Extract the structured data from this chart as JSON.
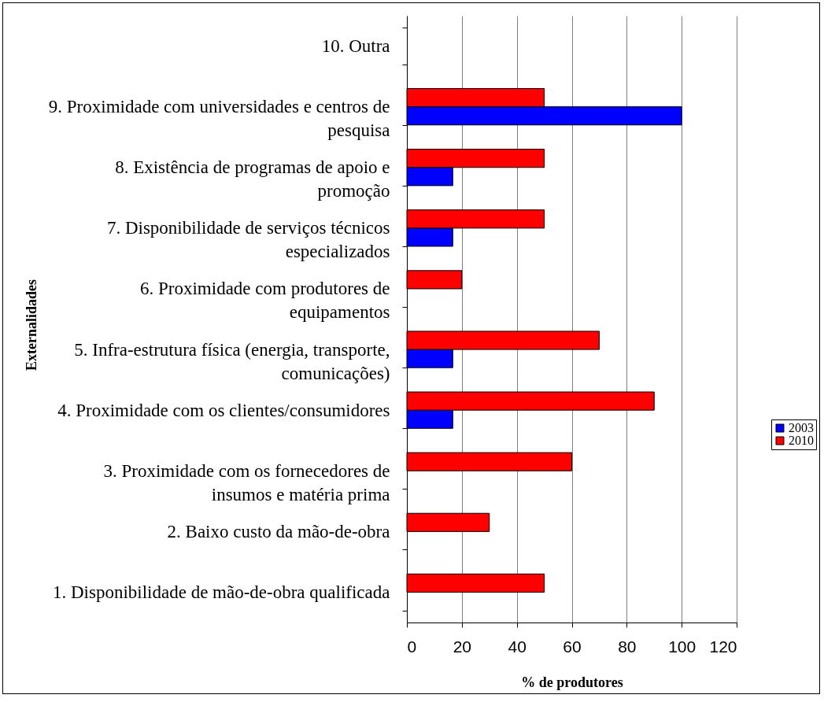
{
  "chart_data": {
    "type": "bar",
    "orientation": "horizontal",
    "xlabel": "% de produtores",
    "ylabel": "Externalidades",
    "categories": [
      "10. Outra",
      "9. Proximidade com universidades e centros de pesquisa",
      "8. Existência de programas de apoio e promoção",
      "7. Disponibilidade de serviços técnicos especializados",
      "6. Proximidade com produtores de equipamentos",
      "5. Infra-estrutura física (energia, transporte, comunicações)",
      "4. Proximidade com os clientes/consumidores",
      "3. Proximidade com os fornecedores de insumos e matéria prima",
      "2. Baixo custo da mão-de-obra",
      "1. Disponibilidade de mão-de-obra qualificada"
    ],
    "series": [
      {
        "name": "2003",
        "color": "#0000ff",
        "values": [
          null,
          100,
          16.7,
          16.7,
          null,
          16.7,
          16.7,
          null,
          null,
          null
        ]
      },
      {
        "name": "2010",
        "color": "#ff0000",
        "values": [
          null,
          50,
          50,
          50,
          20,
          70,
          90,
          60,
          30,
          50
        ]
      }
    ],
    "xlim": [
      0,
      120
    ],
    "xticks": [
      0,
      20,
      40,
      60,
      80,
      100,
      120
    ],
    "grid": "x",
    "legend": "right"
  }
}
